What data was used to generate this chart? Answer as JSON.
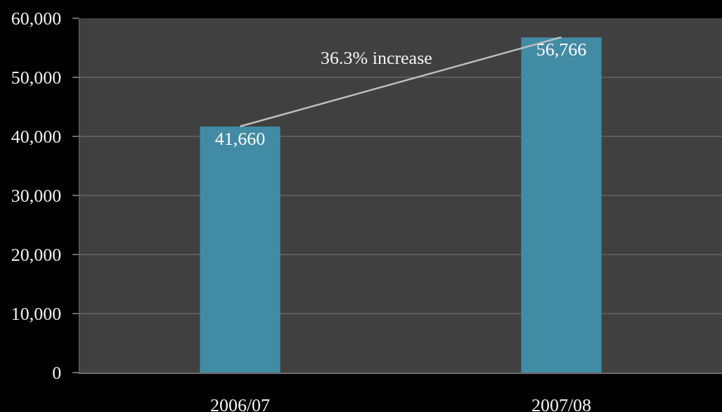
{
  "chart_data": {
    "type": "bar",
    "categories": [
      "2006/07",
      "2007/08"
    ],
    "series": [
      {
        "color": "#428ba5",
        "values": [
          41660,
          56766
        ],
        "value_labels": [
          "41,660",
          "56,766"
        ]
      },
      {
        "type": "line",
        "color": "#bfbfbf",
        "values": [
          41700,
          56800
        ]
      }
    ],
    "ylim": [
      0,
      60000
    ],
    "yticks": [
      0,
      {
        "value": 10000,
        "label": "10,000"
      },
      {
        "value": 20000,
        "label": "20,000"
      },
      {
        "value": 30000,
        "label": "30,000"
      },
      {
        "value": 40000,
        "label": "40,000"
      },
      {
        "value": 50000,
        "label": "50,000"
      },
      {
        "value": 60000,
        "label": "60,000"
      }
    ],
    "grid": "y",
    "annotations": [
      "36.3% increase"
    ]
  }
}
